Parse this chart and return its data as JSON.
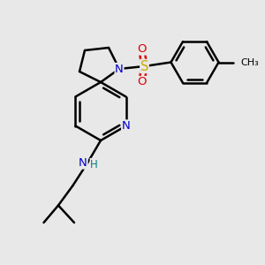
{
  "bg_color": "#e8e8e8",
  "bond_color": "#000000",
  "bond_width": 1.8,
  "atom_colors": {
    "N": "#0000cc",
    "S": "#ccaa00",
    "O": "#dd0000",
    "H": "#008080",
    "C": "#000000"
  },
  "font_size": 9.5,
  "fig_size": [
    3.0,
    3.0
  ],
  "dpi": 100
}
